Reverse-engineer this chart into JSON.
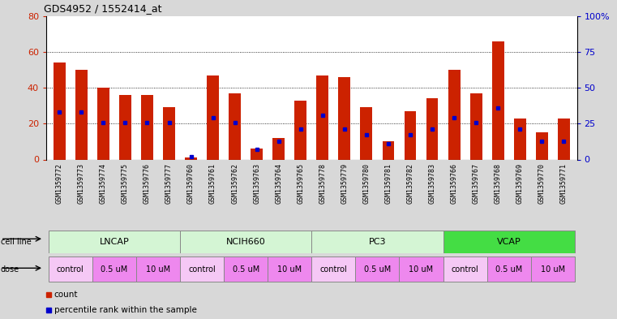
{
  "title": "GDS4952 / 1552414_at",
  "samples": [
    "GSM1359772",
    "GSM1359773",
    "GSM1359774",
    "GSM1359775",
    "GSM1359776",
    "GSM1359777",
    "GSM1359760",
    "GSM1359761",
    "GSM1359762",
    "GSM1359763",
    "GSM1359764",
    "GSM1359765",
    "GSM1359778",
    "GSM1359779",
    "GSM1359780",
    "GSM1359781",
    "GSM1359782",
    "GSM1359783",
    "GSM1359766",
    "GSM1359767",
    "GSM1359768",
    "GSM1359769",
    "GSM1359770",
    "GSM1359771"
  ],
  "counts": [
    54,
    50,
    40,
    36,
    36,
    29,
    1,
    47,
    37,
    6,
    12,
    33,
    47,
    46,
    29,
    10,
    27,
    34,
    50,
    37,
    66,
    23,
    15,
    23
  ],
  "percentiles": [
    33,
    33,
    26,
    26,
    26,
    26,
    2,
    29,
    26,
    7,
    13,
    21,
    31,
    21,
    17,
    11,
    17,
    21,
    29,
    26,
    36,
    21,
    13,
    13
  ],
  "cell_lines": [
    {
      "name": "LNCAP",
      "start": 0,
      "end": 6,
      "color": "#d4f5d4"
    },
    {
      "name": "NCIH660",
      "start": 6,
      "end": 12,
      "color": "#d4f5d4"
    },
    {
      "name": "PC3",
      "start": 12,
      "end": 18,
      "color": "#d4f5d4"
    },
    {
      "name": "VCAP",
      "start": 18,
      "end": 24,
      "color": "#44dd44"
    }
  ],
  "doses": [
    {
      "name": "control",
      "start": 0,
      "end": 2,
      "color": "#f5c8f5"
    },
    {
      "name": "0.5 uM",
      "start": 2,
      "end": 4,
      "color": "#ee88ee"
    },
    {
      "name": "10 uM",
      "start": 4,
      "end": 6,
      "color": "#ee88ee"
    },
    {
      "name": "control",
      "start": 6,
      "end": 8,
      "color": "#f5c8f5"
    },
    {
      "name": "0.5 uM",
      "start": 8,
      "end": 10,
      "color": "#ee88ee"
    },
    {
      "name": "10 uM",
      "start": 10,
      "end": 12,
      "color": "#ee88ee"
    },
    {
      "name": "control",
      "start": 12,
      "end": 14,
      "color": "#f5c8f5"
    },
    {
      "name": "0.5 uM",
      "start": 14,
      "end": 16,
      "color": "#ee88ee"
    },
    {
      "name": "10 uM",
      "start": 16,
      "end": 18,
      "color": "#ee88ee"
    },
    {
      "name": "control",
      "start": 18,
      "end": 20,
      "color": "#f5c8f5"
    },
    {
      "name": "0.5 uM",
      "start": 20,
      "end": 22,
      "color": "#ee88ee"
    },
    {
      "name": "10 uM",
      "start": 22,
      "end": 24,
      "color": "#ee88ee"
    }
  ],
  "bar_color": "#cc2200",
  "percentile_color": "#0000cc",
  "left_ylim": [
    0,
    80
  ],
  "right_ylim": [
    0,
    100
  ],
  "left_yticks": [
    0,
    20,
    40,
    60,
    80
  ],
  "right_yticks": [
    0,
    25,
    50,
    75,
    100
  ],
  "right_yticklabels": [
    "0",
    "25",
    "50",
    "75",
    "100%"
  ],
  "grid_values": [
    20,
    40,
    60
  ],
  "bg_color": "#d8d8d8",
  "plot_bg_color": "#ffffff",
  "xtick_bg": "#d0d0d0"
}
